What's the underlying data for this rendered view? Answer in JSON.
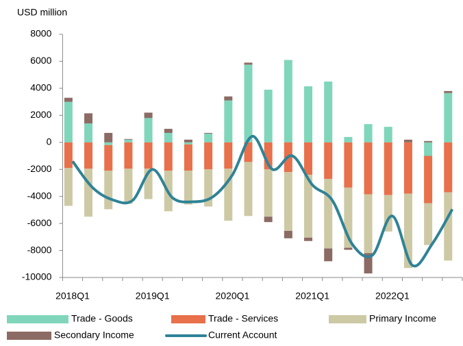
{
  "chart_data": {
    "type": "stacked-bar-line",
    "y_label": "USD million",
    "categories": [
      "2018Q1",
      null,
      null,
      null,
      "2019Q1",
      null,
      null,
      null,
      "2020Q1",
      null,
      null,
      null,
      "2021Q1",
      null,
      null,
      null,
      "2022Q1",
      null,
      null,
      null
    ],
    "series": [
      {
        "name": "Trade - Goods",
        "type": "bar",
        "color": "#7fd6bb",
        "values": [
          3000,
          1400,
          -200,
          200,
          1800,
          700,
          -150,
          650,
          3100,
          5750,
          3900,
          6100,
          4150,
          4500,
          400,
          1350,
          1150,
          0,
          -1000,
          3650
        ]
      },
      {
        "name": "Trade - Services",
        "type": "bar",
        "color": "#e8704a",
        "values": [
          -1900,
          -1950,
          -1900,
          -1950,
          -1950,
          -2100,
          -1950,
          -2000,
          -1950,
          -1450,
          -2000,
          -2200,
          -2400,
          -2700,
          -3350,
          -3850,
          -3900,
          -3800,
          -3500,
          -3700
        ]
      },
      {
        "name": "Primary Income",
        "type": "bar",
        "color": "#cdc9a5",
        "values": [
          -2800,
          -3550,
          -2850,
          -2600,
          -2250,
          -3000,
          -2500,
          -2750,
          -3850,
          -4000,
          -3500,
          -4350,
          -4650,
          -5150,
          -4450,
          -4350,
          -2700,
          -5500,
          -3100,
          -5050
        ]
      },
      {
        "name": "Secondary Income",
        "type": "bar",
        "color": "#8c6b64",
        "values": [
          300,
          750,
          700,
          50,
          400,
          300,
          200,
          50,
          300,
          150,
          -400,
          -550,
          -250,
          -950,
          -150,
          -1500,
          0,
          200,
          100,
          150
        ]
      },
      {
        "name": "Current Account",
        "type": "line",
        "color": "#2f8396",
        "values": [
          -1400,
          -3350,
          -4250,
          -4300,
          -2000,
          -4100,
          -4400,
          -4050,
          -2400,
          450,
          -2000,
          -1000,
          -3150,
          -4300,
          -7550,
          -8350,
          -5450,
          -9100,
          -7500,
          -4950
        ]
      }
    ],
    "ylim": [
      -10000,
      8000
    ],
    "yticks": [
      -10000,
      -8000,
      -6000,
      -4000,
      -2000,
      0,
      2000,
      4000,
      6000,
      8000
    ]
  }
}
